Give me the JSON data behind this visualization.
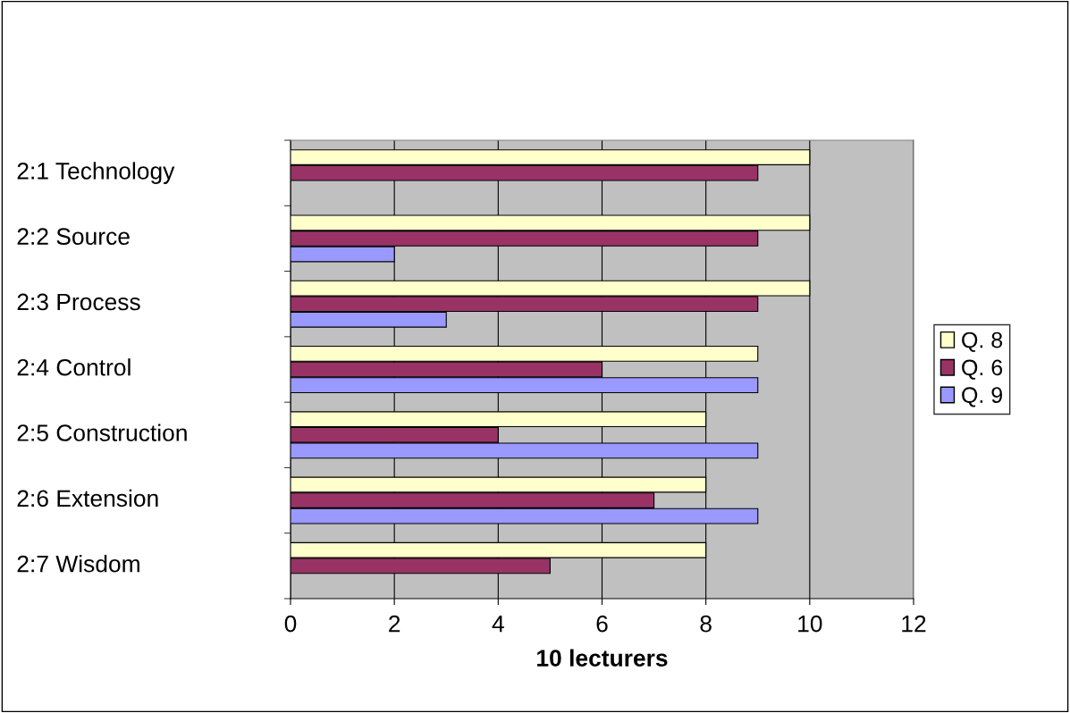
{
  "chart_data": {
    "type": "bar",
    "orientation": "horizontal",
    "xlabel": "10 lecturers",
    "categories": [
      "2:1 Technology",
      "2:2 Source",
      "2:3 Process",
      "2:4 Control",
      "2:5 Construction",
      "2:6 Extension",
      "2:7 Wisdom"
    ],
    "series": [
      {
        "name": "Q. 8",
        "color": "#ffffcc",
        "values": [
          10,
          10,
          10,
          9,
          8,
          8,
          8
        ]
      },
      {
        "name": "Q. 6",
        "color": "#993366",
        "values": [
          9,
          9,
          9,
          6,
          4,
          7,
          5
        ]
      },
      {
        "name": "Q. 9",
        "color": "#9999ff",
        "values": [
          null,
          2,
          3,
          9,
          9,
          9,
          null
        ]
      }
    ],
    "xlim": [
      0,
      12
    ],
    "xticks": [
      0,
      2,
      4,
      6,
      8,
      10,
      12
    ],
    "grid": "x",
    "legend": "right"
  }
}
